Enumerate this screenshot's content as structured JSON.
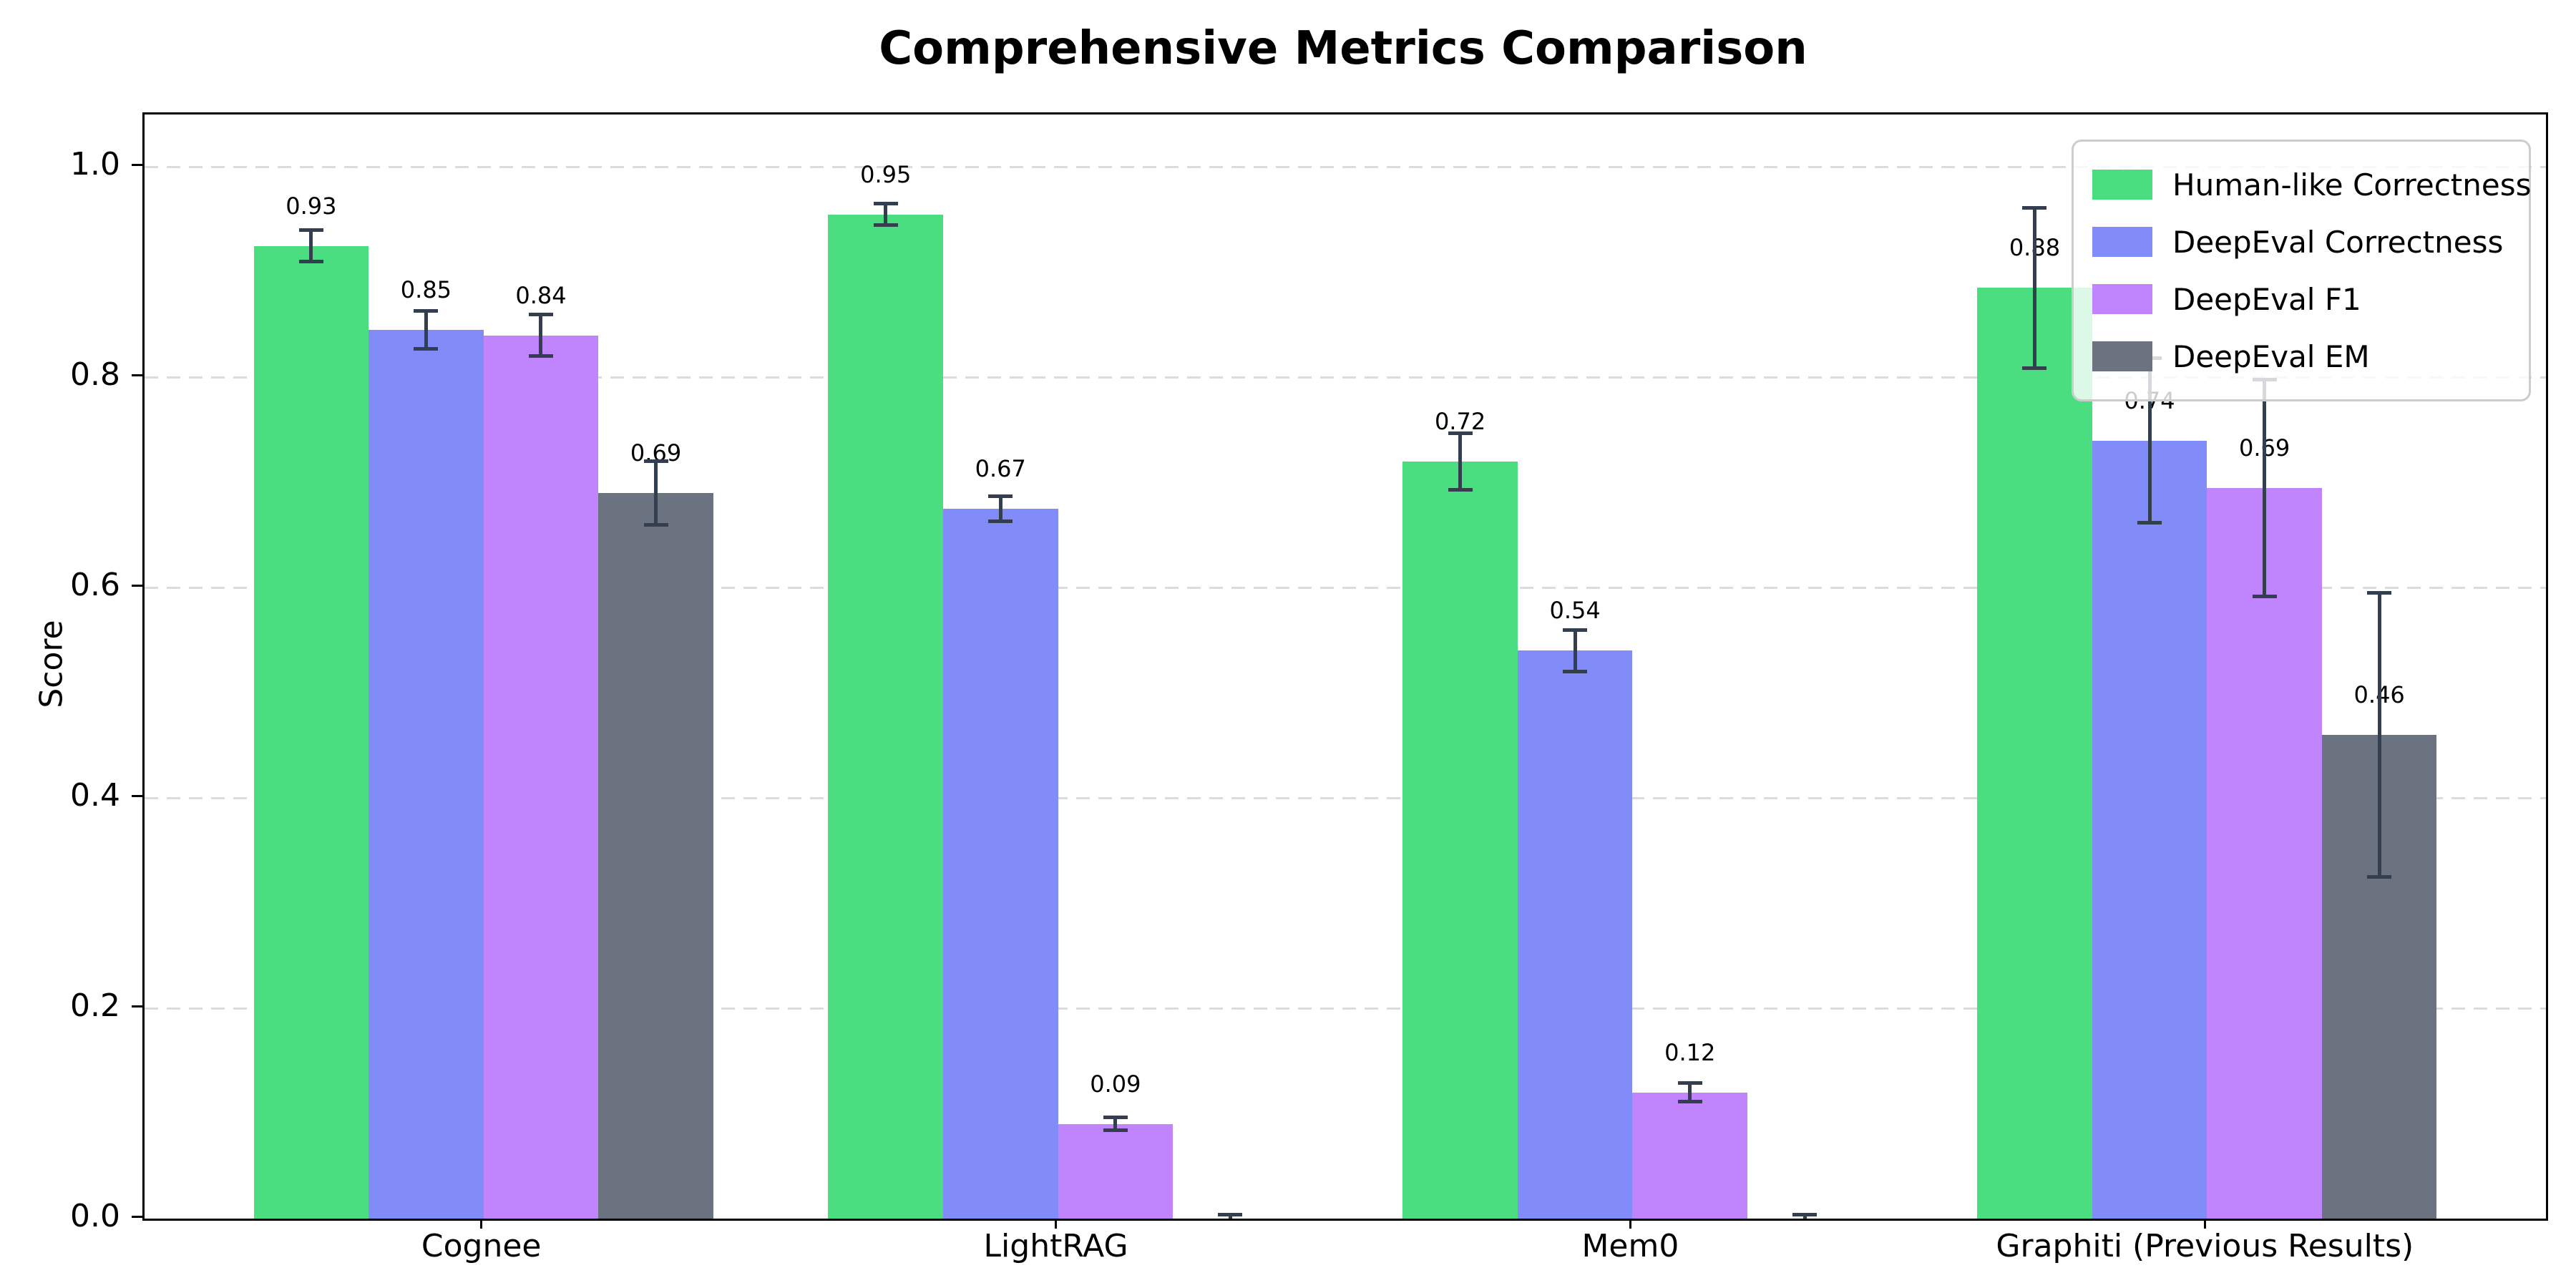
{
  "chart_data": {
    "type": "bar",
    "title": "Comprehensive Metrics Comparison",
    "xlabel": "",
    "ylabel": "Score",
    "categories": [
      "Cognee",
      "LightRAG",
      "Mem0",
      "Graphiti (Previous Results)"
    ],
    "series": [
      {
        "name": "Human-like Correctness",
        "color": "#4ade80",
        "values": [
          0.925,
          0.955,
          0.72,
          0.885
        ],
        "labels": [
          "0.93",
          "0.95",
          "0.72",
          "0.88"
        ],
        "errors": [
          0.015,
          0.01,
          0.027,
          0.076
        ]
      },
      {
        "name": "DeepEval Correctness",
        "color": "#818cf8",
        "values": [
          0.845,
          0.675,
          0.54,
          0.74
        ],
        "labels": [
          "0.85",
          "0.67",
          "0.54",
          "0.74"
        ],
        "errors": [
          0.018,
          0.012,
          0.02,
          0.078
        ]
      },
      {
        "name": "DeepEval F1",
        "color": "#c084fc",
        "values": [
          0.84,
          0.09,
          0.12,
          0.695
        ],
        "labels": [
          "0.84",
          "0.09",
          "0.12",
          "0.69"
        ],
        "errors": [
          0.02,
          0.006,
          0.009,
          0.103
        ]
      },
      {
        "name": "DeepEval EM",
        "color": "#6b7280",
        "values": [
          0.69,
          0.0,
          0.0,
          0.46
        ],
        "labels": [
          "0.69",
          null,
          null,
          "0.46"
        ],
        "errors": [
          0.03,
          0.004,
          0.004,
          0.135
        ]
      }
    ],
    "y_tick_labels": [
      "0.0",
      "0.2",
      "0.4",
      "0.6",
      "0.8",
      "1.0"
    ],
    "ylim": [
      0,
      1.05
    ],
    "grid": "dashed-horizontal",
    "grid_color": "#dcdcdc",
    "error_bar_color": "#333e4e",
    "legend_position": "upper-right"
  }
}
